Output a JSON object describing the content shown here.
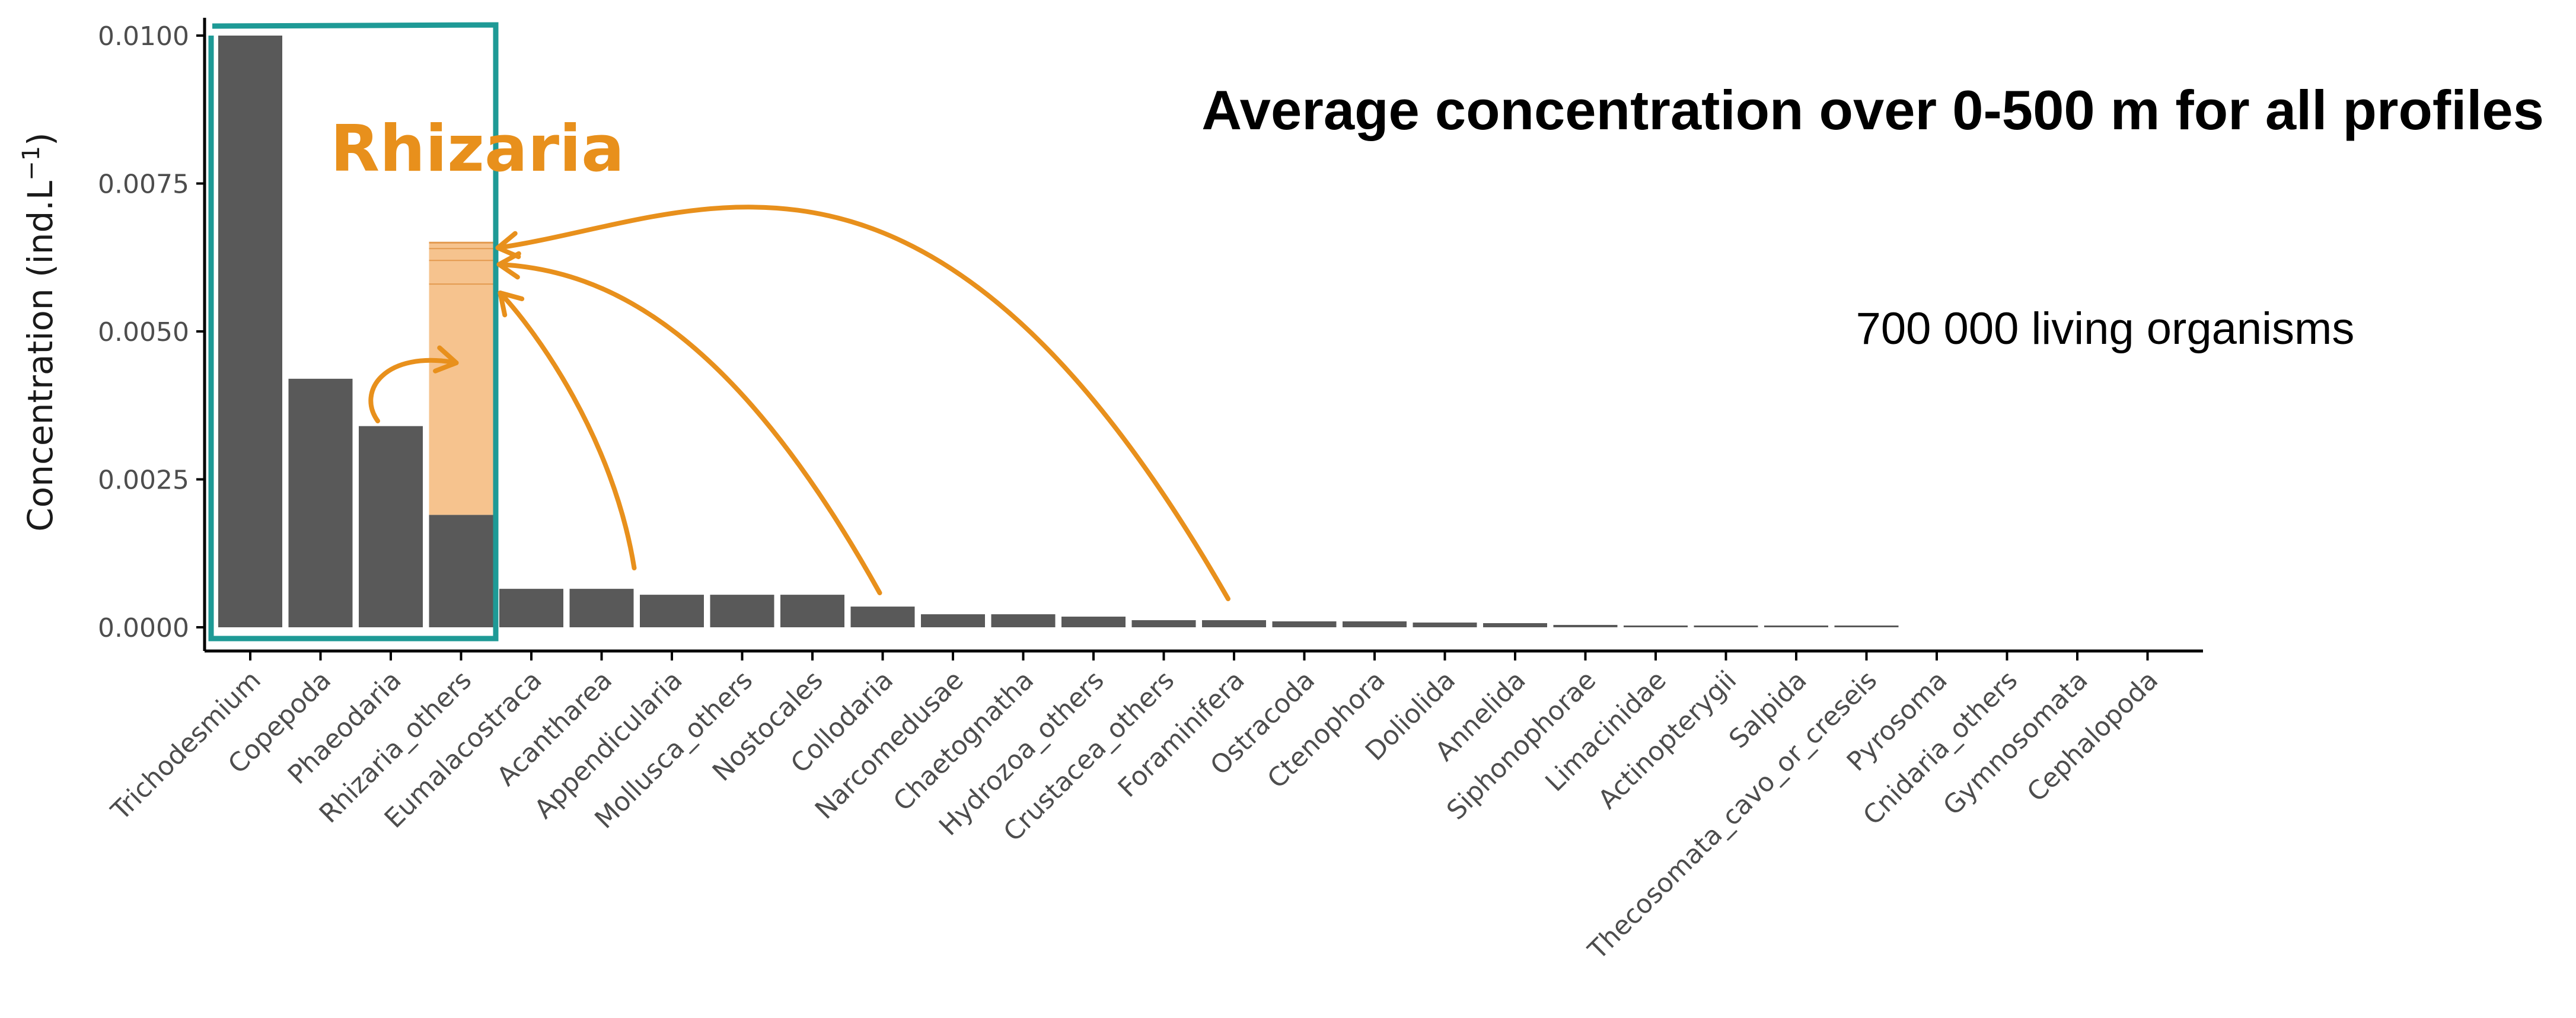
{
  "chart_data": {
    "type": "bar",
    "title": "Average concentration over 0-500 m for all profiles",
    "subtitle": "700 000 living organisms",
    "ylabel_main": "Concentration (ind.L",
    "ylabel_sup": "−1",
    "ylabel_close": ")",
    "ylim": [
      0,
      0.0102
    ],
    "yticks": [
      0.0,
      0.0025,
      0.005,
      0.0075,
      0.01
    ],
    "ytick_labels": [
      "0.0000",
      "0.0025",
      "0.0050",
      "0.0075",
      "0.0100"
    ],
    "categories": [
      "Trichodesmium",
      "Copepoda",
      "Phaeodaria",
      "Rhizaria_others",
      "Eumalacostraca",
      "Acantharea",
      "Appendicularia",
      "Mollusca_others",
      "Nostocales",
      "Collodaria",
      "Narcomedusae",
      "Chaetognatha",
      "Hydrozoa_others",
      "Crustacea_others",
      "Foraminifera",
      "Ostracoda",
      "Ctenophora",
      "Doliolida",
      "Annelida",
      "Siphonophorae",
      "Limacinidae",
      "Actinopterygii",
      "Salpida",
      "Thecosomata_cavo_or_creseis",
      "Pyrosoma",
      "Cnidaria_others",
      "Gymnosomata",
      "Cephalopoda"
    ],
    "values": [
      0.01,
      0.0042,
      0.0034,
      0.0019,
      0.00065,
      0.00065,
      0.00055,
      0.00055,
      0.00055,
      0.00035,
      0.00022,
      0.00022,
      0.00018,
      0.00012,
      0.00012,
      0.0001,
      0.0001,
      8e-05,
      7e-05,
      4e-05,
      2e-05,
      2e-05,
      2e-05,
      2e-05,
      0.0,
      0.0,
      0.0,
      0.0
    ],
    "bar_color": "#595959",
    "annotation": {
      "label": "Rhizaria",
      "stacked_total": 0.0065,
      "stack_bands": [
        0.0058,
        0.0062,
        0.0064
      ],
      "stack_color": "#f6c38e",
      "stack_line_color": "#e39a4f",
      "arrow_color": "#e8901c",
      "bracket_color": "#1e9a96",
      "arrow_sources": [
        "Phaeodaria",
        "Acantharea",
        "Collodaria",
        "Foraminifera"
      ]
    },
    "grid": false,
    "legend": "none"
  }
}
